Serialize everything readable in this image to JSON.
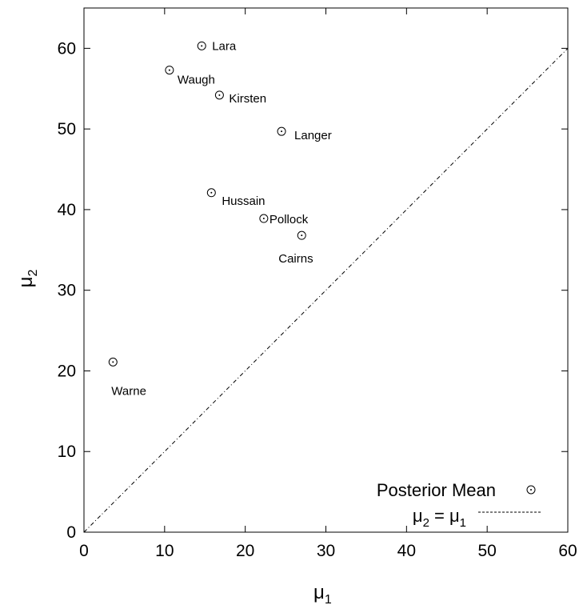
{
  "chart_data": {
    "type": "scatter",
    "xlabel": "μ",
    "xlabel_sub": "1",
    "ylabel": "μ",
    "ylabel_sub": "2",
    "xlim": [
      0,
      60
    ],
    "ylim": [
      0,
      65
    ],
    "xticks": [
      0,
      10,
      20,
      30,
      40,
      50,
      60
    ],
    "yticks": [
      0,
      10,
      20,
      30,
      40,
      50,
      60
    ],
    "grid": false,
    "legend_position": "bottom-right",
    "series": [
      {
        "name": "Posterior Mean",
        "marker": "circle-dot",
        "points": [
          {
            "label": "Lara",
            "x": 14.6,
            "y": 60.3
          },
          {
            "label": "Waugh",
            "x": 10.6,
            "y": 57.3
          },
          {
            "label": "Kirsten",
            "x": 16.8,
            "y": 54.2
          },
          {
            "label": "Langer",
            "x": 24.5,
            "y": 49.7
          },
          {
            "label": "Hussain",
            "x": 15.8,
            "y": 42.1
          },
          {
            "label": "Pollock",
            "x": 22.3,
            "y": 38.9
          },
          {
            "label": "Cairns",
            "x": 27.0,
            "y": 36.8
          },
          {
            "label": "Warne",
            "x": 3.6,
            "y": 21.1
          }
        ]
      }
    ],
    "reference_line": {
      "name": "μ",
      "name_parts": [
        "μ",
        "2",
        " = μ",
        "1"
      ],
      "style": "dashed",
      "from": [
        0,
        0
      ],
      "to": [
        60,
        60
      ]
    }
  }
}
